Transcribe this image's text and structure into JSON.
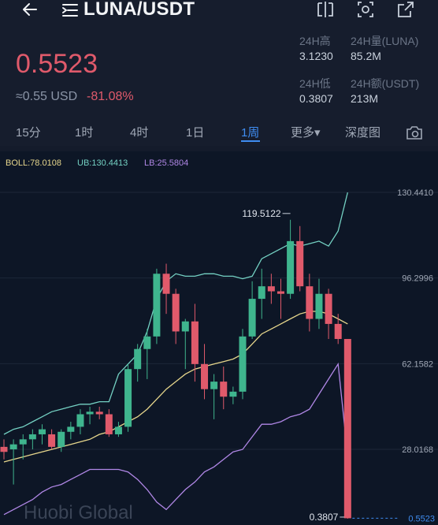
{
  "header": {
    "pair": "LUNA/USDT",
    "price": "0.5523",
    "approx_fiat": "≈0.55 USD",
    "change": "-81.08%",
    "icons": [
      "back-arrow-icon",
      "menu-icon",
      "split-screen-icon",
      "camera-icon",
      "share-icon"
    ]
  },
  "stats": {
    "high_label": "24H高",
    "high_value": "3.1230",
    "vol_label": "24H量(LUNA)",
    "vol_value": "85.2M",
    "low_label": "24H低",
    "low_value": "0.3807",
    "amount_label": "24H额(USDT)",
    "amount_value": "213M"
  },
  "tabs": [
    "15分",
    "1时",
    "4时",
    "1日",
    "1周",
    "更多▾",
    "深度图"
  ],
  "active_tab": "1周",
  "indicators": {
    "boll": "BOLL:78.0108",
    "ub": "UB:130.4413",
    "lb": "LB:25.5804"
  },
  "colors": {
    "up": "#3fb58e",
    "down": "#e05a6b",
    "accent": "#3f8cf0",
    "boll": "#e6d68c",
    "ub": "#74d1c3",
    "lb": "#b087e6"
  },
  "chart_data": {
    "type": "candlestick",
    "y_ticks": [
      "130.4410",
      "96.2996",
      "62.1582",
      "28.0168"
    ],
    "y_tick_values": [
      130.441,
      96.2996,
      62.1582,
      28.0168
    ],
    "annotations": {
      "max_label": "119.5122",
      "min_label": "0.3807",
      "last_price_label": "0.5523"
    },
    "watermark": "Huobi Global",
    "candles": [
      {
        "o": 29,
        "h": 32,
        "l": 24,
        "c": 27
      },
      {
        "o": 28,
        "h": 32,
        "l": 14,
        "c": 30
      },
      {
        "o": 30,
        "h": 34,
        "l": 24,
        "c": 32
      },
      {
        "o": 32,
        "h": 36,
        "l": 28,
        "c": 34
      },
      {
        "o": 34,
        "h": 38,
        "l": 30,
        "c": 36
      },
      {
        "o": 34,
        "h": 36,
        "l": 28,
        "c": 29
      },
      {
        "o": 29,
        "h": 36,
        "l": 27,
        "c": 35
      },
      {
        "o": 35,
        "h": 39,
        "l": 32,
        "c": 37
      },
      {
        "o": 37,
        "h": 44,
        "l": 34,
        "c": 42
      },
      {
        "o": 42,
        "h": 45,
        "l": 38,
        "c": 43
      },
      {
        "o": 43,
        "h": 45,
        "l": 40,
        "c": 42
      },
      {
        "o": 42,
        "h": 44,
        "l": 33,
        "c": 34
      },
      {
        "o": 34,
        "h": 39,
        "l": 33,
        "c": 37
      },
      {
        "o": 37,
        "h": 62,
        "l": 35,
        "c": 60
      },
      {
        "o": 60,
        "h": 70,
        "l": 55,
        "c": 68
      },
      {
        "o": 68,
        "h": 76,
        "l": 56,
        "c": 73
      },
      {
        "o": 73,
        "h": 100,
        "l": 70,
        "c": 98
      },
      {
        "o": 98,
        "h": 102,
        "l": 82,
        "c": 90
      },
      {
        "o": 90,
        "h": 92,
        "l": 70,
        "c": 75
      },
      {
        "o": 75,
        "h": 80,
        "l": 60,
        "c": 79
      },
      {
        "o": 79,
        "h": 86,
        "l": 55,
        "c": 62
      },
      {
        "o": 62,
        "h": 70,
        "l": 48,
        "c": 52
      },
      {
        "o": 52,
        "h": 58,
        "l": 40,
        "c": 55
      },
      {
        "o": 55,
        "h": 61,
        "l": 44,
        "c": 49
      },
      {
        "o": 49,
        "h": 53,
        "l": 46,
        "c": 51
      },
      {
        "o": 51,
        "h": 76,
        "l": 48,
        "c": 73
      },
      {
        "o": 73,
        "h": 95,
        "l": 72,
        "c": 88
      },
      {
        "o": 88,
        "h": 100,
        "l": 80,
        "c": 93
      },
      {
        "o": 93,
        "h": 98,
        "l": 86,
        "c": 91
      },
      {
        "o": 91,
        "h": 96,
        "l": 80,
        "c": 90
      },
      {
        "o": 90,
        "h": 119.5,
        "l": 88,
        "c": 111
      },
      {
        "o": 111,
        "h": 117,
        "l": 91,
        "c": 93
      },
      {
        "o": 93,
        "h": 98,
        "l": 75,
        "c": 80
      },
      {
        "o": 80,
        "h": 96,
        "l": 76,
        "c": 90
      },
      {
        "o": 90,
        "h": 92,
        "l": 72,
        "c": 78
      },
      {
        "o": 78,
        "h": 82,
        "l": 70,
        "c": 72
      },
      {
        "o": 72,
        "h": 72,
        "l": 0.3807,
        "c": 0.5523
      }
    ],
    "boll_mid": [
      23,
      24,
      25,
      26,
      27,
      28,
      29,
      30,
      31,
      32,
      34,
      35,
      37,
      39,
      41,
      44,
      48,
      52,
      55,
      58,
      60,
      61,
      62,
      63,
      64,
      66,
      70,
      74,
      76,
      78,
      80,
      82,
      83,
      83,
      82,
      80,
      78
    ],
    "boll_upper": [
      34,
      36,
      37,
      39,
      41,
      43,
      44,
      45,
      46,
      46,
      47,
      47,
      58,
      62,
      66,
      75,
      88,
      95,
      98,
      97,
      97,
      98,
      98,
      97,
      97,
      96,
      97,
      104,
      106,
      108,
      110,
      109,
      110,
      111,
      109,
      115,
      130.4
    ],
    "boll_lower": [
      2,
      4,
      6,
      8,
      11,
      13,
      14,
      16,
      18,
      20,
      20,
      20,
      20,
      19,
      16,
      12,
      7,
      4,
      8,
      12,
      15,
      19,
      21,
      24,
      27,
      28,
      33,
      38,
      38,
      39,
      41,
      42,
      44,
      50,
      56,
      62,
      25.6
    ]
  }
}
